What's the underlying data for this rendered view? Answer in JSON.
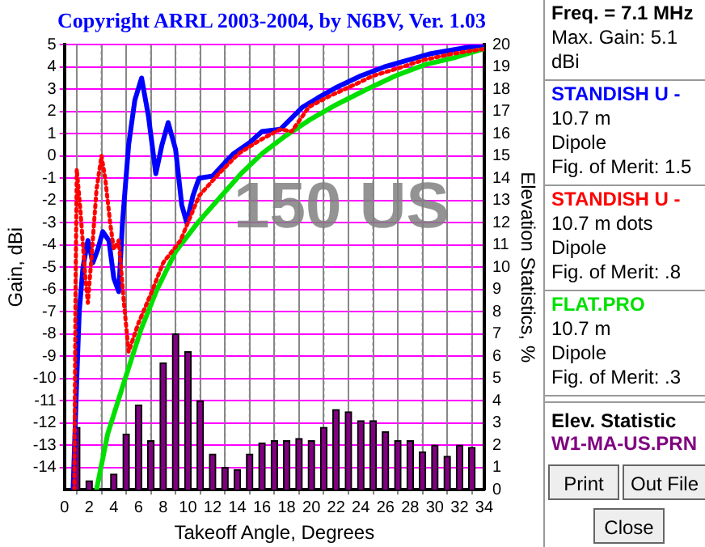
{
  "chart_data": {
    "type": "line",
    "title": "Copyright ARRL 2003-2004, by N6BV, Ver. 1.03",
    "xlabel": "Takeoff Angle, Degrees",
    "ylabel": "Gain, dBi",
    "y2label": "Elevation Statistics, %",
    "xlim": [
      0,
      34
    ],
    "xticks": [
      0,
      2,
      4,
      6,
      8,
      10,
      12,
      14,
      16,
      18,
      20,
      22,
      24,
      26,
      28,
      30,
      32,
      34
    ],
    "ylim": [
      -15,
      5
    ],
    "yticks": [
      -14,
      -13,
      -12,
      -11,
      -10,
      -9,
      -8,
      -7,
      -6,
      -5,
      -4,
      -3,
      -2,
      -1,
      0,
      1,
      2,
      3,
      4,
      5
    ],
    "y2lim": [
      0,
      20
    ],
    "y2ticks": [
      0,
      1,
      2,
      3,
      4,
      5,
      6,
      7,
      8,
      9,
      10,
      11,
      12,
      13,
      14,
      15,
      16,
      17,
      18,
      19,
      20
    ],
    "grid": true,
    "legend": "right",
    "series": [
      {
        "type": "bar",
        "axis": "y2",
        "name": "W1-MA-US.PRN",
        "color": "#800080",
        "x": [
          1,
          2,
          3,
          4,
          5,
          6,
          7,
          8,
          9,
          10,
          11,
          12,
          13,
          14,
          15,
          16,
          17,
          18,
          19,
          20,
          21,
          22,
          23,
          24,
          25,
          26,
          27,
          28,
          29,
          30,
          31,
          32,
          33
        ],
        "values": [
          2.8,
          0.4,
          0,
          0.7,
          2.5,
          3.8,
          2.2,
          5.7,
          7.0,
          6.2,
          4.0,
          1.6,
          1.0,
          0.9,
          1.6,
          2.1,
          2.2,
          2.2,
          2.3,
          2.2,
          2.8,
          3.6,
          3.5,
          3.1,
          3.1,
          2.6,
          2.2,
          2.2,
          1.7,
          2.0,
          1.5,
          2.0,
          1.9
        ]
      },
      {
        "name": "STANDISH U -",
        "color": "#0000ff",
        "line_style": "solid",
        "x": [
          0.7,
          1.0,
          1.2,
          1.5,
          1.9,
          2.3,
          2.7,
          3.1,
          3.6,
          4.0,
          4.4,
          4.7,
          5.2,
          5.7,
          6.25,
          6.8,
          7.4,
          7.9,
          8.4,
          9.0,
          9.5,
          9.9,
          10.4,
          10.9,
          12.0,
          13.0,
          13.7,
          15.0,
          16.0,
          17.5,
          19.3,
          20.5,
          22.1,
          24.0,
          25.9,
          27.8,
          29.7,
          31.8,
          33.9
        ],
        "values": [
          -15,
          -10,
          -7,
          -5,
          -3.8,
          -4.8,
          -4.2,
          -3.4,
          -3.8,
          -5.5,
          -6.1,
          -3,
          0.5,
          2.5,
          3.5,
          1.8,
          -0.8,
          0.5,
          1.5,
          0.3,
          -2.2,
          -3.0,
          -1.8,
          -1.0,
          -0.9,
          -0.3,
          0.1,
          0.6,
          1.1,
          1.2,
          2.2,
          2.6,
          3.1,
          3.6,
          4.0,
          4.3,
          4.6,
          4.8,
          5.0
        ]
      },
      {
        "name": "STANDISH U -",
        "color": "#ff0000",
        "line_style": "dotted",
        "x": [
          0.8,
          0.9,
          1.0,
          1.3,
          1.7,
          1.9,
          2.2,
          2.6,
          3.0,
          3.3,
          3.7,
          4.0,
          4.4,
          4.8,
          5.2,
          6.0,
          7.0,
          8.0,
          9.4,
          10.9,
          12.5,
          14.1,
          15.8,
          17.5,
          18.4,
          19.8,
          21.5,
          23.1,
          25.0,
          26.8,
          29.0,
          31.5,
          33.9
        ],
        "values": [
          -15,
          -6,
          -0.6,
          -2.5,
          -5.5,
          -6.6,
          -4.5,
          -1.5,
          0.0,
          -1.0,
          -3.0,
          -4.2,
          -3.8,
          -6.5,
          -8.8,
          -7.5,
          -6.2,
          -4.8,
          -3.8,
          -1.8,
          -0.8,
          0.1,
          0.7,
          1.2,
          1.1,
          2.2,
          2.7,
          3.1,
          3.6,
          3.9,
          4.3,
          4.6,
          4.8
        ]
      },
      {
        "name": "FLAT.PRO",
        "color": "#00e000",
        "line_style": "solid",
        "x": [
          2.6,
          3.5,
          4.75,
          6.2,
          7.5,
          9.0,
          10.8,
          12.7,
          14.3,
          16.0,
          17.9,
          19.8,
          22.0,
          24.5,
          26.8,
          29.2,
          31.5,
          33.9
        ],
        "values": [
          -15,
          -12.5,
          -10.3,
          -7.8,
          -6.0,
          -4.3,
          -3.0,
          -1.8,
          -0.8,
          0.1,
          0.9,
          1.6,
          2.3,
          3.0,
          3.6,
          4.1,
          4.4,
          4.8
        ]
      }
    ],
    "annotations": [
      "150 US",
      "Freq. = 7.1 MHz",
      "Max. Gain: 5.1 dBi",
      "10.7 m",
      "Dipole",
      "Fig. of Merit:  1.5",
      "10.7 m dots",
      "Dipole",
      "Fig. of Merit:  .8",
      "10.7 m",
      "Dipole",
      "Fig. of Merit:  .3",
      "Elev. Statistic",
      "Print",
      "Out File",
      "Close"
    ]
  }
}
